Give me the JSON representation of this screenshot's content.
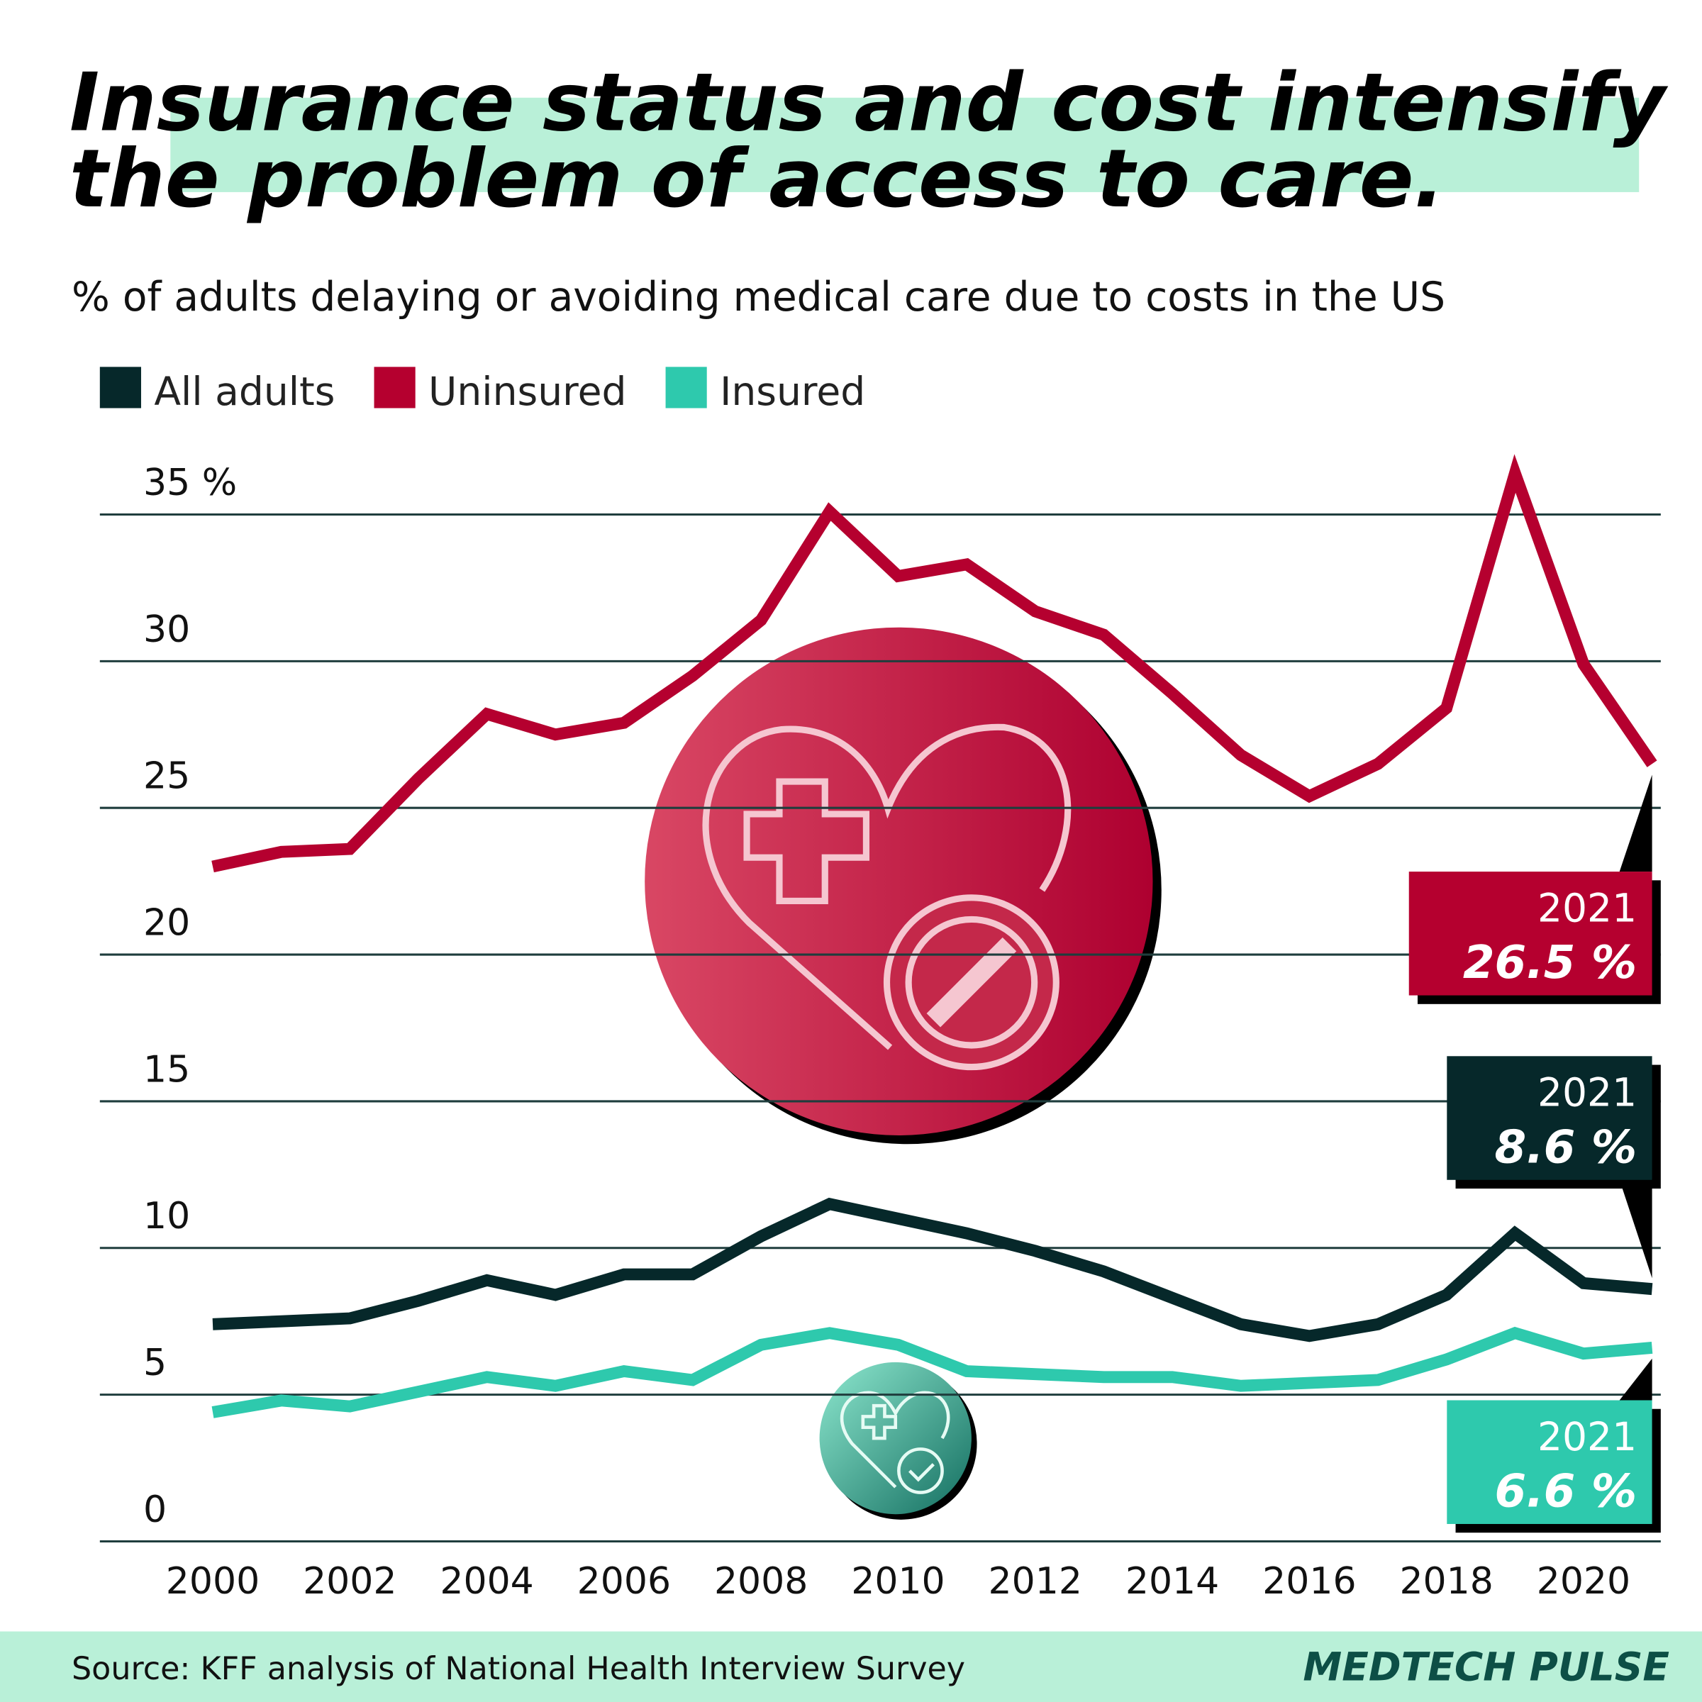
{
  "chart_data": {
    "type": "line",
    "title": "Insurance status and cost intensify the problem of access to care.",
    "title_lines": [
      "Insurance status and cost intensify",
      "the problem of access to care."
    ],
    "subtitle": "% of adults delaying or avoiding medical care due to costs in the US",
    "x": [
      2000,
      2001,
      2002,
      2003,
      2004,
      2005,
      2006,
      2007,
      2008,
      2009,
      2010,
      2011,
      2012,
      2013,
      2014,
      2015,
      2016,
      2017,
      2018,
      2019,
      2020,
      2021
    ],
    "xlim": [
      2000,
      2021
    ],
    "xticks": [
      2000,
      2002,
      2004,
      2006,
      2008,
      2010,
      2012,
      2014,
      2016,
      2018,
      2020
    ],
    "ylim": [
      0,
      35
    ],
    "yticks": [
      0,
      5,
      10,
      15,
      20,
      25,
      30,
      {
        "value": 35,
        "label": "35 %"
      }
    ],
    "grid": true,
    "series": [
      {
        "name": "All adults",
        "color": "#06282a",
        "values": [
          7.4,
          7.5,
          7.6,
          8.2,
          8.9,
          8.4,
          9.1,
          9.1,
          10.4,
          11.5,
          11.0,
          10.5,
          9.9,
          9.2,
          8.3,
          7.4,
          7.0,
          7.4,
          8.4,
          10.5,
          8.8,
          8.6
        ],
        "value_labels": [
          null,
          null,
          null,
          null,
          null,
          null,
          null,
          null,
          null,
          null,
          null,
          null,
          null,
          null,
          null,
          null,
          null,
          null,
          null,
          null,
          null,
          "8.6 %"
        ]
      },
      {
        "name": "Uninsured",
        "color": "#b5002f",
        "values": [
          23.0,
          23.5,
          23.6,
          26.0,
          28.2,
          27.5,
          27.9,
          29.5,
          31.4,
          35.1,
          32.9,
          33.3,
          31.7,
          30.9,
          28.9,
          26.8,
          25.4,
          26.5,
          28.4,
          36.4,
          29.9,
          26.5
        ],
        "value_labels": [
          null,
          null,
          null,
          null,
          null,
          null,
          null,
          null,
          null,
          null,
          null,
          null,
          null,
          null,
          null,
          null,
          null,
          null,
          null,
          null,
          null,
          "26.5 %"
        ]
      },
      {
        "name": "Insured",
        "color": "#2ec9ad",
        "values": [
          4.4,
          4.8,
          4.6,
          5.1,
          5.6,
          5.3,
          5.8,
          5.5,
          6.7,
          7.1,
          6.7,
          5.8,
          5.7,
          5.6,
          5.6,
          5.3,
          5.4,
          5.5,
          6.2,
          7.1,
          6.4,
          6.6
        ],
        "value_labels": [
          null,
          null,
          null,
          null,
          null,
          null,
          null,
          null,
          null,
          null,
          null,
          null,
          null,
          null,
          null,
          null,
          null,
          null,
          null,
          null,
          null,
          "6.6 %"
        ]
      }
    ],
    "source": "Source: KFF analysis of National Health Interview Survey",
    "brand": "MEDTECH PULSE"
  }
}
